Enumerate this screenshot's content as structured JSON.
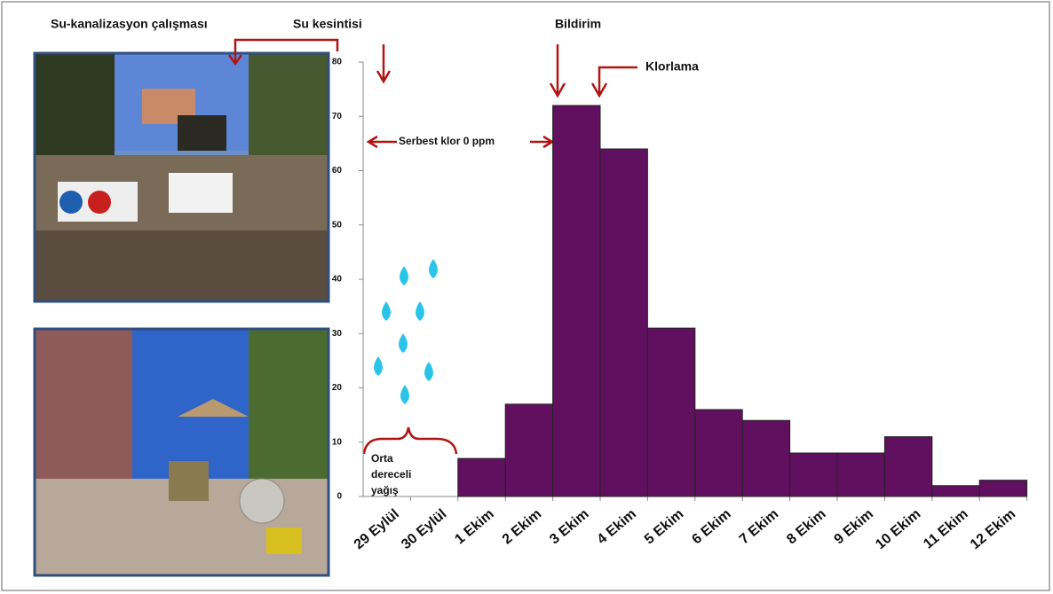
{
  "chart_data": {
    "type": "bar",
    "categories": [
      "29 Eylül",
      "30 Eylül",
      "1 Ekim",
      "2 Ekim",
      "3 Ekim",
      "4 Ekim",
      "5 Ekim",
      "6 Ekim",
      "7 Ekim",
      "8 Ekim",
      "9 Ekim",
      "10 Ekim",
      "11 Ekim",
      "12 Ekim"
    ],
    "values": [
      0,
      0,
      7,
      17,
      72,
      64,
      31,
      16,
      14,
      8,
      8,
      11,
      2,
      3
    ],
    "color": "#611060",
    "ylim": [
      0,
      80
    ],
    "yticks": [
      0,
      10,
      20,
      30,
      40,
      50,
      60,
      70,
      80
    ],
    "annotations": [
      "Su-kanalizasyon  çalışması",
      "Su kesintisi",
      "Bildirim",
      "Klorlama",
      "Serbest klor 0 ppm",
      "Orta",
      "dereceli",
      "yağış"
    ]
  }
}
